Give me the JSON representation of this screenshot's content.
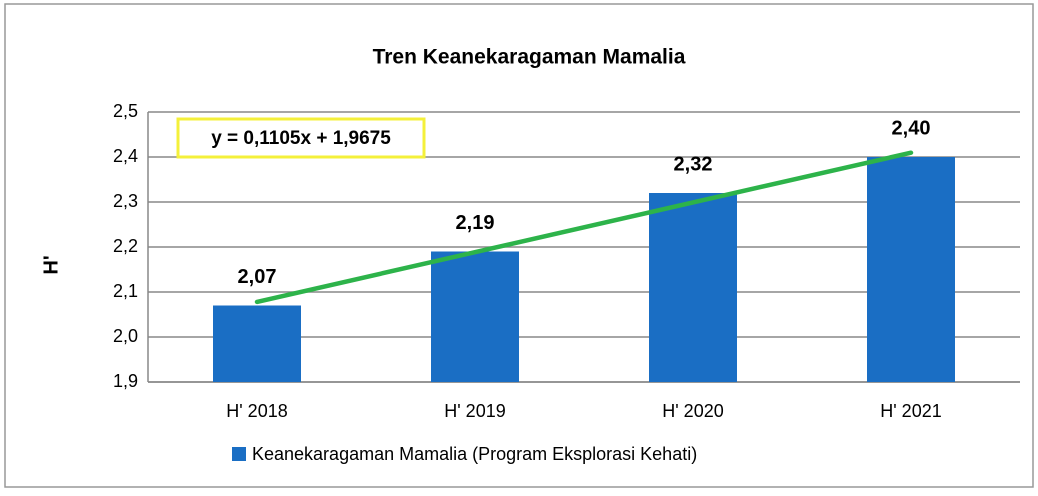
{
  "chart_data": {
    "type": "bar",
    "title": "Tren Keanekaragaman  Mamalia",
    "y_label": "H'",
    "categories": [
      "H' 2018",
      "H' 2019",
      "H' 2020",
      "H' 2021"
    ],
    "series": [
      {
        "name": "Keanekaragaman Mamalia (Program Eksplorasi Kehati)",
        "color": "#1a6ec4",
        "values": [
          2.07,
          2.19,
          2.32,
          2.4
        ],
        "value_labels": [
          "2,07",
          "2,19",
          "2,32",
          "2,40"
        ]
      }
    ],
    "ylim": [
      1.9,
      2.5
    ],
    "yticks": [
      {
        "value": 1.9,
        "label": "1,9"
      },
      {
        "value": 2.0,
        "label": "2,0"
      },
      {
        "value": 2.1,
        "label": "2,1"
      },
      {
        "value": 2.2,
        "label": "2,2"
      },
      {
        "value": 2.3,
        "label": "2,3"
      },
      {
        "value": 2.4,
        "label": "2,4"
      },
      {
        "value": 2.5,
        "label": "2,5"
      }
    ],
    "grid": true,
    "legend": "bottom",
    "trendline": {
      "slope": 0.1105,
      "intercept": 1.9675,
      "label": "y = 0,1105x + 1,9675",
      "color": "#2db34a"
    }
  }
}
